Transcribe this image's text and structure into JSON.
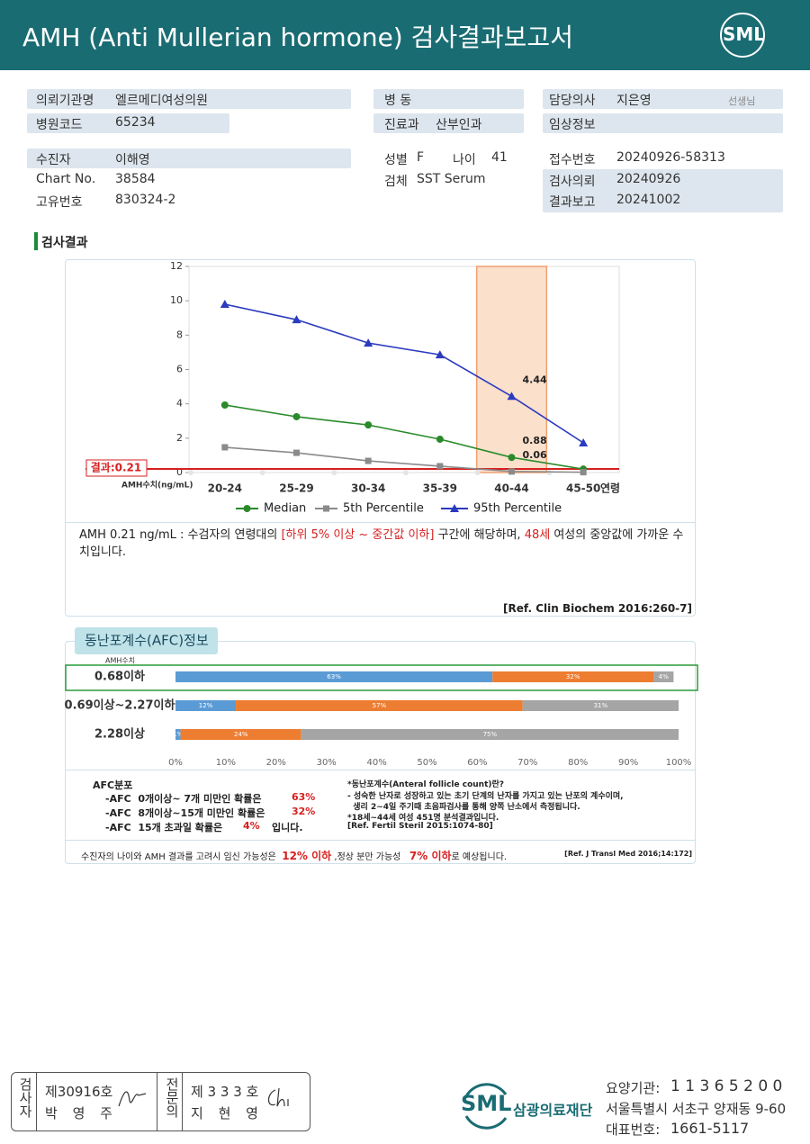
{
  "header": {
    "title": "AMH (Anti Mullerian hormone) 검사결과보고서",
    "logo": "SML"
  },
  "info": {
    "left": [
      [
        "의뢰기관명",
        "엘르메디여성의원"
      ],
      [
        "병원코드",
        "65234"
      ],
      [
        "수진자",
        "이해영"
      ],
      [
        "Chart No.",
        "38584"
      ],
      [
        "고유번호",
        "830324-2"
      ]
    ],
    "middle": [
      [
        "병 동"
      ],
      [
        "진료과",
        "산부인과"
      ],
      [
        "성별",
        "F",
        "나이",
        "41"
      ],
      [
        "검체",
        "SST Serum"
      ]
    ],
    "right": [
      [
        "담당의사",
        "지은영",
        "선생님"
      ],
      [
        "임상정보"
      ],
      [
        "접수번호",
        "20240926-58313"
      ],
      [
        "검사의뢰",
        "20240926"
      ],
      [
        "결과보고",
        "20241002"
      ]
    ]
  },
  "section_title": "검사결과",
  "chart_data": [
    {
      "type": "line",
      "categories": [
        "20-24",
        "25-29",
        "30-34",
        "35-39",
        "40-44",
        "45-50"
      ],
      "x_label": "연령",
      "y_label": "AMH수치(ng/mL)",
      "ylim": [
        0,
        12
      ],
      "yticks": [
        0,
        2,
        4,
        6,
        8,
        10,
        12
      ],
      "highlight_category": "40-44",
      "reference_line": {
        "value": 0.21,
        "label": "결과:0.21",
        "color": "#d62020"
      },
      "series": [
        {
          "name": "Median",
          "color": "#2a8a2a",
          "marker": "circle",
          "values": [
            3.93,
            3.25,
            2.77,
            1.94,
            0.88,
            0.2
          ],
          "value_labels": [
            null,
            null,
            null,
            null,
            "0.88",
            null
          ]
        },
        {
          "name": "5th Percentile",
          "color": "#8a8a8a",
          "marker": "square",
          "values": [
            1.47,
            1.15,
            0.68,
            0.37,
            0.06,
            0.02
          ],
          "value_labels": [
            null,
            null,
            null,
            null,
            "0.06",
            null
          ]
        },
        {
          "name": "95th Percentile",
          "color": "#2b3bbf",
          "marker": "triangle",
          "values": [
            9.8,
            8.9,
            7.54,
            6.86,
            4.44,
            1.73
          ],
          "value_labels": [
            null,
            null,
            null,
            null,
            "4.44",
            null
          ]
        }
      ]
    },
    {
      "type": "stacked_bar_h",
      "title": "동난포계수(AFC)정보",
      "axis_heading": "AMH수치",
      "categories": [
        "0.68이하",
        "0.69이상~2.27이하",
        "2.28이상"
      ],
      "highlight_category": "0.68이하",
      "xlim": [
        0,
        100
      ],
      "xticks": [
        {
          "value": 0,
          "label": "0%"
        },
        {
          "value": 10,
          "label": "10%"
        },
        {
          "value": 20,
          "label": "20%"
        },
        {
          "value": 30,
          "label": "30%"
        },
        {
          "value": 40,
          "label": "40%"
        },
        {
          "value": 50,
          "label": "50%"
        },
        {
          "value": 60,
          "label": "60%"
        },
        {
          "value": 70,
          "label": "70%"
        },
        {
          "value": 80,
          "label": "80%"
        },
        {
          "value": 90,
          "label": "90%"
        },
        {
          "value": 100,
          "label": "100%"
        }
      ],
      "series": [
        {
          "color": "#5b9bd5",
          "values": [
            63,
            12,
            1
          ],
          "value_labels": [
            "63%",
            "12%",
            "1%"
          ]
        },
        {
          "color": "#ed7d31",
          "values": [
            32,
            57,
            24
          ],
          "value_labels": [
            "32%",
            "57%",
            "24%"
          ]
        },
        {
          "color": "#a5a5a5",
          "values": [
            4,
            31,
            75
          ],
          "value_labels": [
            "4%",
            "31%",
            "75%"
          ]
        }
      ]
    }
  ],
  "interpretation": [
    "AMH  0.21 ng/mL : 수검자의 연령대의 ",
    "[하위 5% 이상 ~ 중간값 이하]",
    " 구간에 해당하며, ",
    "48세",
    " 여성의 중앙값에 가까운 수치입니다."
  ],
  "interpretation_ref": "[Ref. Clin Biochem 2016:260-7]",
  "afc_distribution": {
    "title": "AFC분포",
    "lines": [
      [
        "-AFC  0개이상~ 7개 미만인 확률은",
        "63%",
        ""
      ],
      [
        "-AFC  8개이상~15개 미만인 확률은",
        "32%",
        ""
      ],
      [
        "-AFC  15개 초과일 확률은",
        "4%",
        "입니다."
      ]
    ]
  },
  "afc_notes": [
    "*동난포계수(Anteral follicle count)란?",
    "- 성숙한 난자로 성장하고 있는 초기 단계의 난자를 가지고 있는 난포의 계수이며,",
    "  생리 2~4일 주기때 초음파검사를 통해 양쪽 난소에서 측정됩니다.",
    "*18세~44세 여성 451명 분석결과입니다.",
    "[Ref. Fertil Steril 2015:1074-80]"
  ],
  "prognosis": [
    "수진자의 나이와 AMH 결과를 고려시 임신 가능성은",
    "12% 이하",
    ",정상 분만 가능성",
    "7% 이하",
    "로 예상됩니다.",
    "[Ref. J Transl Med 2016;14:172]"
  ],
  "signature": {
    "examiner": {
      "title": "검사자",
      "license": "제30916호",
      "name": "박 영 주"
    },
    "specialist": {
      "title": "전문의",
      "license": "제 3 3 3 호",
      "name": "지 현 영"
    }
  },
  "footer": {
    "logo": "SML",
    "org": "삼광의료재단",
    "code_label": "요양기관:",
    "code": "1 1 3 6 5 2 0 0",
    "address": "서울특별시 서초구 양재동 9-60",
    "phone_label": "대표번호:",
    "phone": "1661-5117"
  }
}
